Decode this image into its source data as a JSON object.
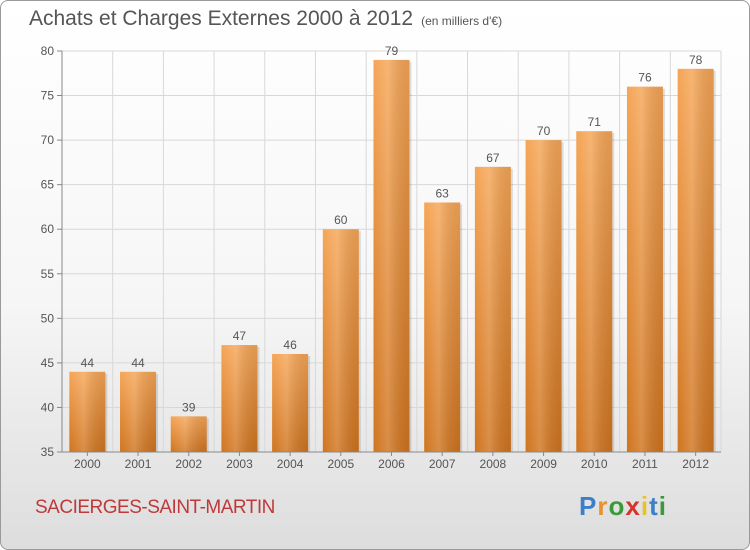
{
  "title": "Achats et Charges Externes 2000 à 2012",
  "unit": "(en milliers d'€)",
  "commune": "SACIERGES-SAINT-MARTIN",
  "logo": {
    "text": "Proxiti",
    "letters": [
      {
        "char": "P",
        "color": "#3a7fc8"
      },
      {
        "char": "r",
        "color": "#e8922a"
      },
      {
        "char": "o",
        "color": "#3a9a3a"
      },
      {
        "char": "x",
        "color": "#d8322a"
      },
      {
        "char": "i",
        "color": "#e8c22a"
      },
      {
        "char": "t",
        "color": "#3a7fc8"
      },
      {
        "char": "i",
        "color": "#3a9a3a"
      }
    ]
  },
  "colors": {
    "bar_light": "#f5a556",
    "bar_dark": "#d0741e",
    "grid": "#d8d8d8",
    "text": "#555555",
    "commune": "#c0393a"
  },
  "chart_data": {
    "type": "bar",
    "categories": [
      "2000",
      "2001",
      "2002",
      "2003",
      "2004",
      "2005",
      "2006",
      "2007",
      "2008",
      "2009",
      "2010",
      "2011",
      "2012"
    ],
    "values": [
      44,
      44,
      39,
      47,
      46,
      60,
      79,
      63,
      67,
      70,
      71,
      76,
      78
    ],
    "ylim": [
      35,
      80
    ],
    "yticks": [
      35,
      40,
      45,
      50,
      55,
      60,
      65,
      70,
      75,
      80
    ],
    "grid": true,
    "data_labels": true
  }
}
